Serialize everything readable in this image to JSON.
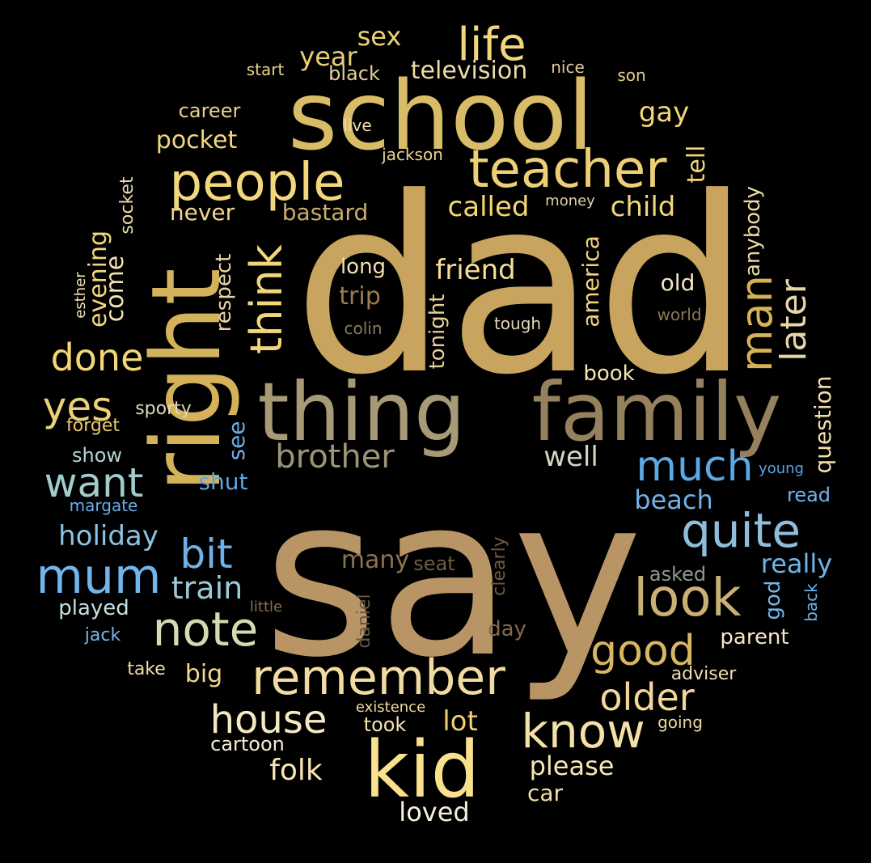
{
  "word_cloud": {
    "words": [
      {
        "text": "dad",
        "color": "#c8a45e"
      },
      {
        "text": "say",
        "color": "#b99565"
      },
      {
        "text": "school",
        "color": "#d9bc67"
      },
      {
        "text": "thing",
        "color": "#a79a77"
      },
      {
        "text": "family",
        "color": "#96815f"
      },
      {
        "text": "right",
        "color": "#d4b25c"
      },
      {
        "text": "kid",
        "color": "#f9e08d"
      },
      {
        "text": "people",
        "color": "#f3d77d"
      },
      {
        "text": "teacher",
        "color": "#edcf76"
      },
      {
        "text": "life",
        "color": "#f1d67b"
      },
      {
        "text": "remember",
        "color": "#f1dba2"
      },
      {
        "text": "note",
        "color": "#d5dab1"
      },
      {
        "text": "look",
        "color": "#c8b076"
      },
      {
        "text": "quite",
        "color": "#8fbedb"
      },
      {
        "text": "mum",
        "color": "#72b5ea"
      },
      {
        "text": "much",
        "color": "#5aa8e6"
      },
      {
        "text": "know",
        "color": "#f3e1a8"
      },
      {
        "text": "good",
        "color": "#d9b664"
      },
      {
        "text": "man",
        "color": "#d6b256"
      },
      {
        "text": "think",
        "color": "#f2d679"
      },
      {
        "text": "house",
        "color": "#f5e9c4"
      },
      {
        "text": "older",
        "color": "#f3d69a"
      },
      {
        "text": "want",
        "color": "#a2cbcb"
      },
      {
        "text": "done",
        "color": "#f2d677"
      },
      {
        "text": "yes",
        "color": "#ecd277"
      },
      {
        "text": "bit",
        "color": "#6fb0e6"
      },
      {
        "text": "later",
        "color": "#e6d7a4"
      },
      {
        "text": "brother",
        "color": "#9a9577"
      },
      {
        "text": "train",
        "color": "#9ccbd8"
      },
      {
        "text": "friend",
        "color": "#f6df96"
      },
      {
        "text": "called",
        "color": "#f3d76f"
      },
      {
        "text": "child",
        "color": "#f3d77c"
      },
      {
        "text": "folk",
        "color": "#f8e7b2"
      },
      {
        "text": "please",
        "color": "#f7e6b5"
      },
      {
        "text": "lot",
        "color": "#efcf71"
      },
      {
        "text": "holiday",
        "color": "#8cc2e2"
      },
      {
        "text": "really",
        "color": "#6db6ec"
      },
      {
        "text": "well",
        "color": "#d5d6c2"
      },
      {
        "text": "sex",
        "color": "#f0d277"
      },
      {
        "text": "year",
        "color": "#e8cf77"
      },
      {
        "text": "television",
        "color": "#eedba7"
      },
      {
        "text": "gay",
        "color": "#f1d57a"
      },
      {
        "text": "pocket",
        "color": "#f3d77b"
      },
      {
        "text": "career",
        "color": "#ead08f"
      },
      {
        "text": "start",
        "color": "#e9d089"
      },
      {
        "text": "black",
        "color": "#e2d098"
      },
      {
        "text": "nice",
        "color": "#e1cd9d"
      },
      {
        "text": "son",
        "color": "#e8cf8d"
      },
      {
        "text": "live",
        "color": "#f0dfaf"
      },
      {
        "text": "jackson",
        "color": "#e9d594"
      },
      {
        "text": "tell",
        "color": "#f4d677"
      },
      {
        "text": "money",
        "color": "#e0d2a4"
      },
      {
        "text": "anybody",
        "color": "#e7d8a3"
      },
      {
        "text": "socket",
        "color": "#e9dcaa"
      },
      {
        "text": "evening",
        "color": "#f1d97e"
      },
      {
        "text": "come",
        "color": "#f3e2ad"
      },
      {
        "text": "never",
        "color": "#efd590"
      },
      {
        "text": "bastard",
        "color": "#c9ad6a"
      },
      {
        "text": "respect",
        "color": "#ead6a2"
      },
      {
        "text": "long",
        "color": "#f2e1b4"
      },
      {
        "text": "trip",
        "color": "#9c7d53"
      },
      {
        "text": "colin",
        "color": "#8a7a5e"
      },
      {
        "text": "tonight",
        "color": "#e6d39c"
      },
      {
        "text": "america",
        "color": "#f2d47b"
      },
      {
        "text": "old",
        "color": "#f4e6c1"
      },
      {
        "text": "world",
        "color": "#8f7656"
      },
      {
        "text": "tough",
        "color": "#e3d9b8"
      },
      {
        "text": "book",
        "color": "#f7e6b6"
      },
      {
        "text": "question",
        "color": "#f4dfaa"
      },
      {
        "text": "esther",
        "color": "#f2e3b8"
      },
      {
        "text": "sporty",
        "color": "#dcdabe"
      },
      {
        "text": "forget",
        "color": "#eec96c"
      },
      {
        "text": "see",
        "color": "#6daee8"
      },
      {
        "text": "show",
        "color": "#b3d3d4"
      },
      {
        "text": "shut",
        "color": "#5da4e6"
      },
      {
        "text": "young",
        "color": "#5aa3e6"
      },
      {
        "text": "read",
        "color": "#72b0e8"
      },
      {
        "text": "beach",
        "color": "#71b2e8"
      },
      {
        "text": "margate",
        "color": "#6aaeea"
      },
      {
        "text": "many",
        "color": "#8c7150"
      },
      {
        "text": "seat",
        "color": "#6f5d40"
      },
      {
        "text": "clearly",
        "color": "#6b5b41"
      },
      {
        "text": "asked",
        "color": "#8d9a90"
      },
      {
        "text": "god",
        "color": "#73b5ea"
      },
      {
        "text": "back",
        "color": "#6eb2ea"
      },
      {
        "text": "played",
        "color": "#c8dee0"
      },
      {
        "text": "little",
        "color": "#8c7050"
      },
      {
        "text": "daniel",
        "color": "#6a573d"
      },
      {
        "text": "day",
        "color": "#836a4b"
      },
      {
        "text": "jack",
        "color": "#76b4e8"
      },
      {
        "text": "parent",
        "color": "#f3e7c6"
      },
      {
        "text": "take",
        "color": "#efdca8"
      },
      {
        "text": "big",
        "color": "#f1d98d"
      },
      {
        "text": "adviser",
        "color": "#f1dfaf"
      },
      {
        "text": "existence",
        "color": "#f0d99b"
      },
      {
        "text": "took",
        "color": "#f4e4b4"
      },
      {
        "text": "going",
        "color": "#eed9a1"
      },
      {
        "text": "cartoon",
        "color": "#f5eed7"
      },
      {
        "text": "car",
        "color": "#f3e0a7"
      },
      {
        "text": "loved",
        "color": "#f7f1db"
      }
    ]
  }
}
